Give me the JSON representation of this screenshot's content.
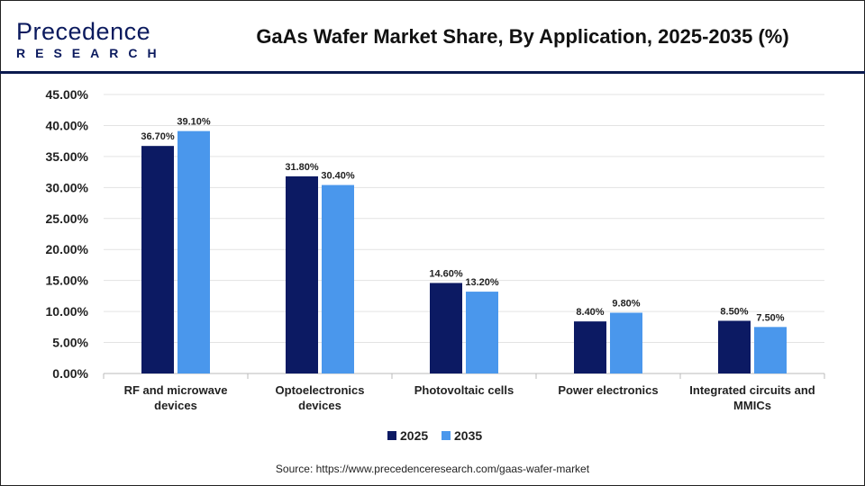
{
  "logo": {
    "line1": "Precedence",
    "line2": "RESEARCH"
  },
  "title": "GaAs Wafer Market Share, By Application, 2025-2035 (%)",
  "source": "Source: https://www.precedenceresearch.com/gaas-wafer-market",
  "colors": {
    "2025": "#0c1a63",
    "2035": "#4a97ec"
  },
  "chart_data": {
    "type": "bar",
    "title": "GaAs Wafer Market Share, By Application, 2025-2035 (%)",
    "categories": [
      [
        "RF and microwave",
        "devices"
      ],
      [
        "Optoelectronics",
        "devices"
      ],
      [
        "Photovoltaic cells"
      ],
      [
        "Power electronics"
      ],
      [
        "Integrated circuits and",
        "MMICs"
      ]
    ],
    "series": [
      {
        "name": "2025",
        "values": [
          36.7,
          31.8,
          14.6,
          8.4,
          8.5
        ],
        "labels": [
          "36.70%",
          "31.80%",
          "14.60%",
          "8.40%",
          "8.50%"
        ]
      },
      {
        "name": "2035",
        "values": [
          39.1,
          30.4,
          13.2,
          9.8,
          7.5
        ],
        "labels": [
          "39.10%",
          "30.40%",
          "13.20%",
          "9.80%",
          "7.50%"
        ]
      }
    ],
    "ylim": [
      0,
      45
    ],
    "yticks": [
      "0.00%",
      "5.00%",
      "10.00%",
      "15.00%",
      "20.00%",
      "25.00%",
      "30.00%",
      "35.00%",
      "40.00%",
      "45.00%"
    ],
    "grid": true,
    "legend": "bottom"
  }
}
